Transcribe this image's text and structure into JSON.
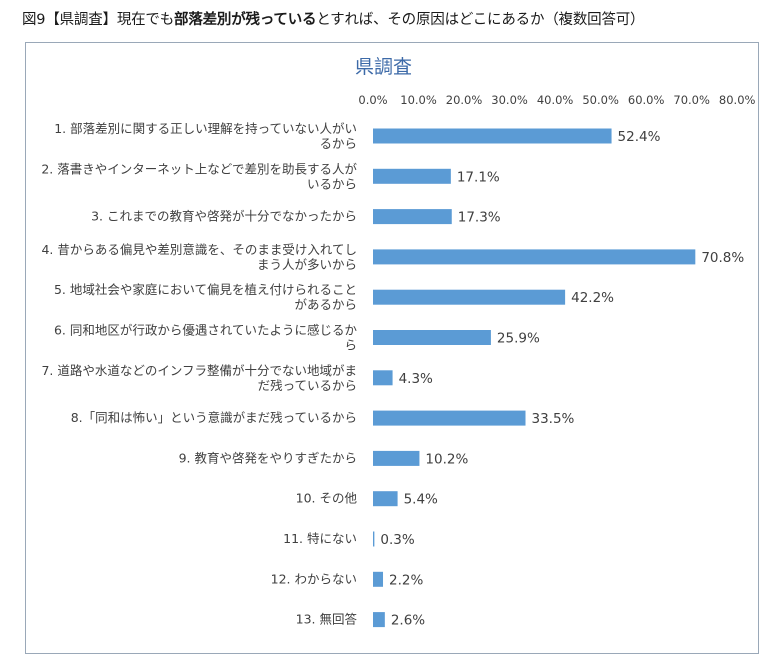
{
  "figure_title": {
    "prefix": "図9【県調査】現在でも",
    "bold": "部落差別が残っている",
    "suffix": "とすれば、その原因はどこにあるか（複数回答可）"
  },
  "chart_data": {
    "type": "bar",
    "orientation": "horizontal",
    "title": "県調査",
    "xlabel": "",
    "ylabel": "",
    "xlim": [
      0,
      80
    ],
    "ticks": [
      "0.0%",
      "10.0%",
      "20.0%",
      "30.0%",
      "40.0%",
      "50.0%",
      "60.0%",
      "70.0%",
      "80.0%"
    ],
    "grid": false,
    "bar_color": "#5b9bd5",
    "categories": [
      [
        "1. 部落差別に関する正しい理解を持っていない人がい",
        "るから"
      ],
      [
        "2. 落書きやインターネット上などで差別を助長する人が",
        "いるから"
      ],
      [
        "3. これまでの教育や啓発が十分でなかったから"
      ],
      [
        "4. 昔からある偏見や差別意識を、そのまま受け入れてし",
        "まう人が多いから"
      ],
      [
        "5. 地域社会や家庭において偏見を植え付けられること",
        "があるから"
      ],
      [
        "6. 同和地区が行政から優遇されていたように感じるか",
        "ら"
      ],
      [
        "7. 道路や水道などのインフラ整備が十分でない地域がま",
        "だ残っているから"
      ],
      [
        "8.「同和は怖い」という意識がまだ残っているから"
      ],
      [
        "9. 教育や啓発をやりすぎたから"
      ],
      [
        "10. その他"
      ],
      [
        "11. 特にない"
      ],
      [
        "12. わからない"
      ],
      [
        "13. 無回答"
      ]
    ],
    "values": [
      52.4,
      17.1,
      17.3,
      70.8,
      42.2,
      25.9,
      4.3,
      33.5,
      10.2,
      5.4,
      0.3,
      2.2,
      2.6
    ],
    "labels": [
      "52.4%",
      "17.1%",
      "17.3%",
      "70.8%",
      "42.2%",
      "25.9%",
      "4.3%",
      "33.5%",
      "10.2%",
      "5.4%",
      "0.3%",
      "2.2%",
      "2.6%"
    ]
  }
}
